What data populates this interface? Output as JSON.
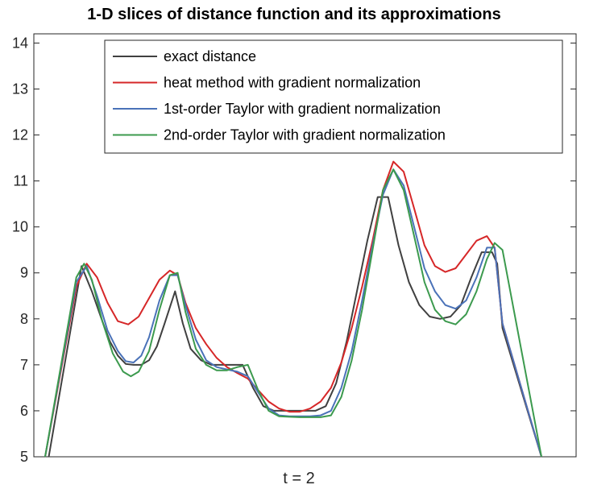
{
  "chart_data": {
    "type": "line",
    "title": "1-D slices of distance function and its approximations",
    "xlabel": "t = 2",
    "ylabel": "",
    "ylim": [
      5,
      14.2
    ],
    "yticks": [
      5,
      6,
      7,
      8,
      9,
      10,
      11,
      12,
      13,
      14
    ],
    "xlim": [
      0,
      1
    ],
    "grid": false,
    "legend_position": "top-right",
    "series": [
      {
        "name": "exact distance",
        "color": "#404040",
        "x": [
          0.007,
          0.07,
          0.09,
          0.11,
          0.125,
          0.14,
          0.155,
          0.17,
          0.185,
          0.2,
          0.215,
          0.23,
          0.25,
          0.265,
          0.28,
          0.3,
          0.32,
          0.34,
          0.36,
          0.38,
          0.4,
          0.42,
          0.44,
          0.46,
          0.48,
          0.5,
          0.52,
          0.54,
          0.56,
          0.58,
          0.6,
          0.62,
          0.64,
          0.66,
          0.68,
          0.7,
          0.72,
          0.74,
          0.76,
          0.78,
          0.8,
          0.82,
          0.84,
          0.86,
          0.87,
          0.88,
          0.955
        ],
        "y": [
          5.0,
          9.15,
          8.6,
          7.95,
          7.5,
          7.2,
          7.02,
          7.0,
          7.0,
          7.1,
          7.4,
          7.9,
          8.6,
          7.9,
          7.35,
          7.1,
          7.0,
          7.0,
          7.0,
          7.0,
          6.5,
          6.1,
          6.0,
          6.0,
          6.0,
          6.0,
          6.0,
          6.1,
          6.6,
          7.5,
          8.6,
          9.7,
          10.65,
          10.65,
          9.6,
          8.8,
          8.3,
          8.05,
          8.0,
          8.05,
          8.3,
          8.9,
          9.45,
          9.45,
          9.2,
          7.8,
          5.0
        ]
      },
      {
        "name": "heat method with gradient normalization",
        "color": "#d62728",
        "x": [
          0.0,
          0.06,
          0.08,
          0.1,
          0.12,
          0.14,
          0.16,
          0.18,
          0.2,
          0.22,
          0.24,
          0.255,
          0.27,
          0.29,
          0.31,
          0.33,
          0.35,
          0.37,
          0.39,
          0.41,
          0.43,
          0.45,
          0.47,
          0.49,
          0.51,
          0.53,
          0.55,
          0.57,
          0.59,
          0.61,
          0.63,
          0.65,
          0.67,
          0.69,
          0.71,
          0.73,
          0.75,
          0.77,
          0.79,
          0.81,
          0.83,
          0.85,
          0.865,
          0.88,
          0.955
        ],
        "y": [
          5.0,
          8.7,
          9.2,
          8.9,
          8.35,
          7.95,
          7.88,
          8.05,
          8.45,
          8.85,
          9.05,
          8.95,
          8.35,
          7.8,
          7.45,
          7.15,
          6.95,
          6.82,
          6.7,
          6.45,
          6.2,
          6.05,
          5.98,
          5.98,
          6.05,
          6.2,
          6.5,
          7.05,
          7.8,
          8.7,
          9.7,
          10.8,
          11.42,
          11.2,
          10.4,
          9.6,
          9.15,
          9.02,
          9.1,
          9.4,
          9.7,
          9.8,
          9.55,
          7.9,
          5.0
        ]
      },
      {
        "name": "1st-order Taylor with gradient normalization",
        "color": "#4a72b8",
        "x": [
          0.0,
          0.06,
          0.08,
          0.1,
          0.12,
          0.14,
          0.155,
          0.17,
          0.185,
          0.2,
          0.22,
          0.24,
          0.255,
          0.27,
          0.29,
          0.31,
          0.33,
          0.35,
          0.37,
          0.39,
          0.41,
          0.43,
          0.45,
          0.47,
          0.49,
          0.51,
          0.53,
          0.55,
          0.57,
          0.59,
          0.61,
          0.63,
          0.65,
          0.67,
          0.69,
          0.71,
          0.73,
          0.75,
          0.77,
          0.79,
          0.81,
          0.83,
          0.85,
          0.865,
          0.88,
          0.955
        ],
        "y": [
          5.0,
          8.8,
          9.15,
          8.5,
          7.75,
          7.3,
          7.08,
          7.05,
          7.2,
          7.6,
          8.4,
          8.95,
          8.95,
          8.3,
          7.55,
          7.1,
          6.95,
          6.9,
          6.85,
          6.75,
          6.4,
          6.05,
          5.9,
          5.88,
          5.88,
          5.88,
          5.9,
          6.0,
          6.5,
          7.3,
          8.4,
          9.6,
          10.7,
          11.25,
          10.9,
          10.0,
          9.1,
          8.6,
          8.3,
          8.22,
          8.4,
          8.9,
          9.55,
          9.55,
          7.9,
          5.0
        ]
      },
      {
        "name": "2nd-order Taylor with gradient normalization",
        "color": "#3c9a4e",
        "x": [
          0.0,
          0.06,
          0.075,
          0.09,
          0.11,
          0.13,
          0.15,
          0.165,
          0.18,
          0.2,
          0.22,
          0.24,
          0.255,
          0.27,
          0.29,
          0.31,
          0.33,
          0.35,
          0.37,
          0.39,
          0.41,
          0.43,
          0.45,
          0.47,
          0.49,
          0.51,
          0.53,
          0.55,
          0.57,
          0.59,
          0.61,
          0.63,
          0.65,
          0.67,
          0.69,
          0.71,
          0.73,
          0.75,
          0.77,
          0.79,
          0.81,
          0.83,
          0.85,
          0.865,
          0.88,
          0.955
        ],
        "y": [
          5.0,
          8.9,
          9.2,
          8.85,
          7.95,
          7.25,
          6.85,
          6.75,
          6.85,
          7.3,
          8.2,
          8.95,
          9.0,
          8.15,
          7.35,
          7.0,
          6.88,
          6.88,
          6.95,
          7.0,
          6.45,
          6.0,
          5.88,
          5.87,
          5.86,
          5.86,
          5.86,
          5.9,
          6.3,
          7.1,
          8.2,
          9.5,
          10.8,
          11.25,
          10.8,
          9.8,
          8.8,
          8.2,
          7.95,
          7.88,
          8.1,
          8.6,
          9.3,
          9.65,
          9.5,
          5.0
        ]
      }
    ]
  }
}
